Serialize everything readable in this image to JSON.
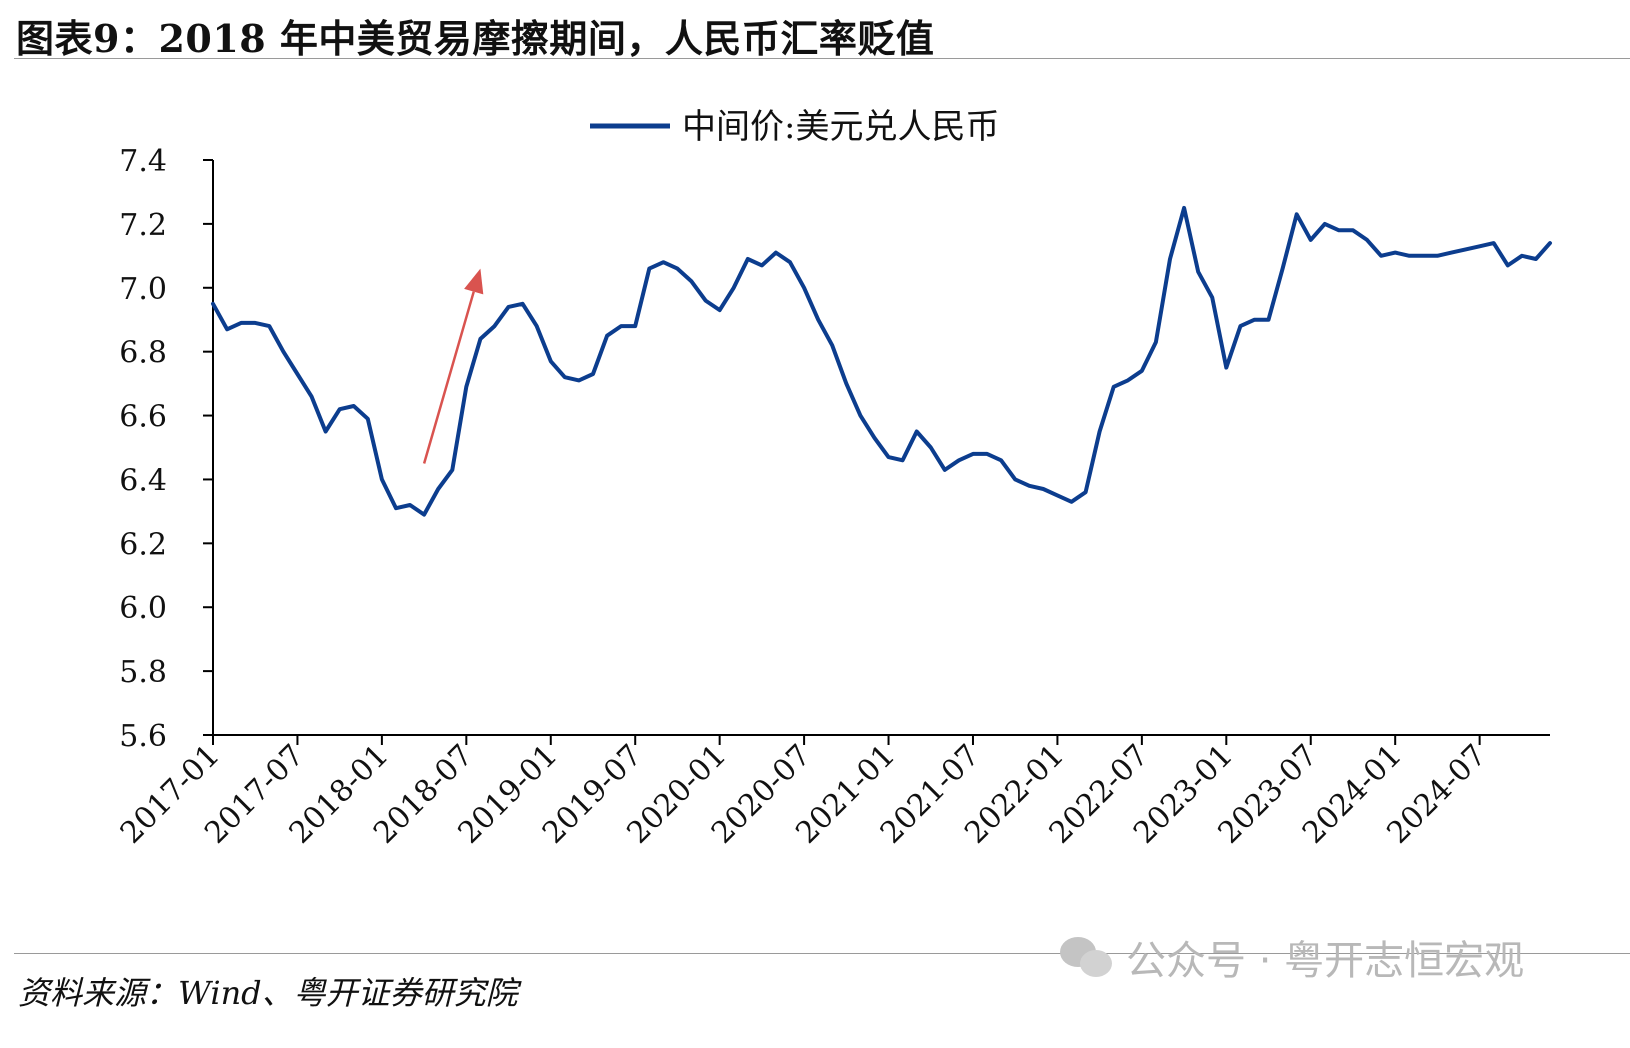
{
  "figure": {
    "title": "图表9：2018 年中美贸易摩擦期间，人民币汇率贬值",
    "source": "资料来源：Wind、粤开证券研究院",
    "watermark": "公众号 · 粤开志恒宏观",
    "watermark_icon": "wechat-icon"
  },
  "chart_data": {
    "type": "line",
    "title": "",
    "xlabel": "",
    "ylabel": "",
    "ylim": [
      5.6,
      7.4
    ],
    "yticks": [
      "7.4",
      "7.2",
      "7.0",
      "6.8",
      "6.6",
      "6.4",
      "6.2",
      "6.0",
      "5.8",
      "5.6"
    ],
    "xlim": [
      "2017-01",
      "2024-12"
    ],
    "xticks": [
      "2017-01",
      "2017-07",
      "2018-01",
      "2018-07",
      "2019-01",
      "2019-07",
      "2020-01",
      "2020-07",
      "2021-01",
      "2021-07",
      "2022-01",
      "2022-07",
      "2023-01",
      "2023-07",
      "2024-01",
      "2024-07"
    ],
    "grid": false,
    "legend": {
      "position": "top-center",
      "entries": [
        "中间价:美元兑人民币"
      ]
    },
    "colors": {
      "series": "#0c3d8e",
      "annotation_arrow": "#d9534f"
    },
    "annotation": {
      "type": "arrow",
      "from": [
        "2018-04",
        6.45
      ],
      "to": [
        "2018-08",
        7.06
      ]
    },
    "series": [
      {
        "name": "中间价:美元兑人民币",
        "x": [
          "2017-01",
          "2017-02",
          "2017-03",
          "2017-04",
          "2017-05",
          "2017-06",
          "2017-07",
          "2017-08",
          "2017-09",
          "2017-10",
          "2017-11",
          "2017-12",
          "2018-01",
          "2018-02",
          "2018-03",
          "2018-04",
          "2018-05",
          "2018-06",
          "2018-07",
          "2018-08",
          "2018-09",
          "2018-10",
          "2018-11",
          "2018-12",
          "2019-01",
          "2019-02",
          "2019-03",
          "2019-04",
          "2019-05",
          "2019-06",
          "2019-07",
          "2019-08",
          "2019-09",
          "2019-10",
          "2019-11",
          "2019-12",
          "2020-01",
          "2020-02",
          "2020-03",
          "2020-04",
          "2020-05",
          "2020-06",
          "2020-07",
          "2020-08",
          "2020-09",
          "2020-10",
          "2020-11",
          "2020-12",
          "2021-01",
          "2021-02",
          "2021-03",
          "2021-04",
          "2021-05",
          "2021-06",
          "2021-07",
          "2021-08",
          "2021-09",
          "2021-10",
          "2021-11",
          "2021-12",
          "2022-01",
          "2022-02",
          "2022-03",
          "2022-04",
          "2022-05",
          "2022-06",
          "2022-07",
          "2022-08",
          "2022-09",
          "2022-10",
          "2022-11",
          "2022-12",
          "2023-01",
          "2023-02",
          "2023-03",
          "2023-04",
          "2023-05",
          "2023-06",
          "2023-07",
          "2023-08",
          "2023-09",
          "2023-10",
          "2023-11",
          "2023-12",
          "2024-01",
          "2024-02",
          "2024-03",
          "2024-04",
          "2024-05",
          "2024-06",
          "2024-07",
          "2024-08",
          "2024-09",
          "2024-10",
          "2024-11",
          "2024-12"
        ],
        "values": [
          6.95,
          6.87,
          6.89,
          6.89,
          6.88,
          6.8,
          6.73,
          6.66,
          6.55,
          6.62,
          6.63,
          6.59,
          6.4,
          6.31,
          6.32,
          6.29,
          6.37,
          6.43,
          6.69,
          6.84,
          6.88,
          6.94,
          6.95,
          6.88,
          6.77,
          6.72,
          6.71,
          6.73,
          6.85,
          6.88,
          6.88,
          7.06,
          7.08,
          7.06,
          7.02,
          6.96,
          6.93,
          7.0,
          7.09,
          7.07,
          7.11,
          7.08,
          7.0,
          6.9,
          6.82,
          6.7,
          6.6,
          6.53,
          6.47,
          6.46,
          6.55,
          6.5,
          6.43,
          6.46,
          6.48,
          6.48,
          6.46,
          6.4,
          6.38,
          6.37,
          6.35,
          6.33,
          6.36,
          6.55,
          6.69,
          6.71,
          6.74,
          6.83,
          7.09,
          7.25,
          7.05,
          6.97,
          6.75,
          6.88,
          6.9,
          6.9,
          7.06,
          7.23,
          7.15,
          7.2,
          7.18,
          7.18,
          7.15,
          7.1,
          7.11,
          7.1,
          7.1,
          7.1,
          7.11,
          7.12,
          7.13,
          7.14,
          7.07,
          7.1,
          7.09,
          7.14
        ]
      }
    ]
  }
}
